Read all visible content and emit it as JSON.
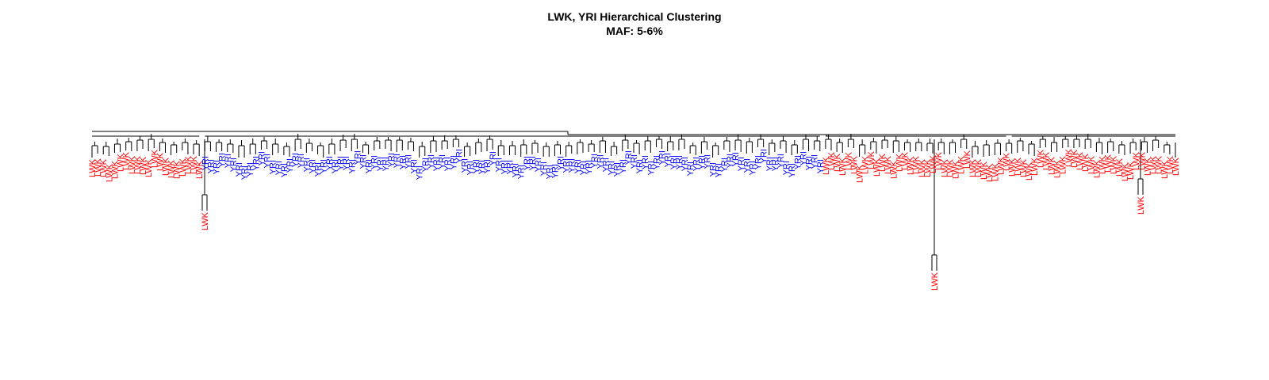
{
  "title": "LWK, YRI Hierarchical Clustering",
  "subtitle": "MAF: 5-6%",
  "colors": {
    "LWK": "#ff0000",
    "YRI": "#0000ff",
    "branch": "#000000"
  },
  "group_labels": {
    "LWK": "LWK",
    "YRI": "YRI"
  },
  "leaf_groups": [
    {
      "label": "LWK",
      "count": 20
    },
    {
      "label": "YRI",
      "count": 110
    },
    {
      "label": "LWK",
      "count": 33
    },
    {
      "label": "LWK",
      "count": 30
    }
  ],
  "outliers": [
    {
      "label": "LWK",
      "count": 1
    },
    {
      "label": "LWK",
      "count": 1
    },
    {
      "label": "LWK",
      "count": 1
    }
  ]
}
